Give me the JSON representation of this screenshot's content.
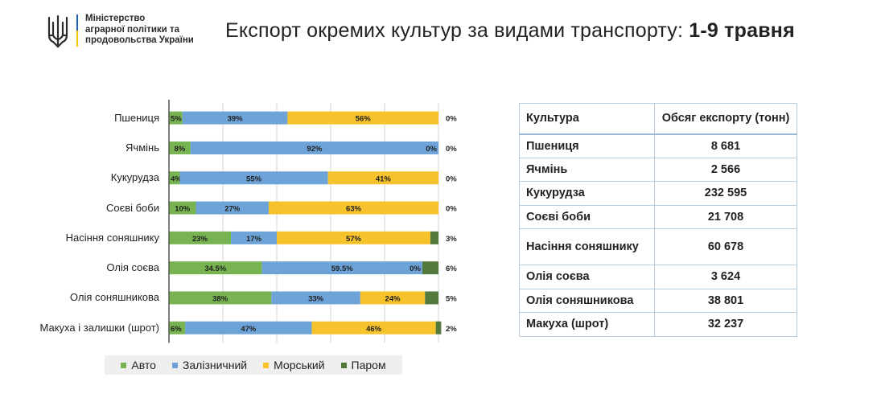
{
  "header": {
    "ministry_lines": [
      "Міністерство",
      "аграрної політики та",
      "продовольства України"
    ],
    "title_regular": "Експорт окремих культур за видами транспорту: ",
    "title_bold": "1-9 травня"
  },
  "colors": {
    "auto": "#77b451",
    "rail": "#6ea3d8",
    "sea": "#f6c32c",
    "ferry": "#537a3d",
    "axis": "#555555",
    "grid": "#d4d4d4"
  },
  "legend": [
    {
      "key": "auto",
      "label": "Авто"
    },
    {
      "key": "rail",
      "label": "Залізничний"
    },
    {
      "key": "sea",
      "label": "Морський"
    },
    {
      "key": "ferry",
      "label": "Паром"
    }
  ],
  "chart_data": {
    "type": "bar",
    "orientation": "horizontal",
    "stacked": true,
    "categories": [
      "Пшениця",
      "Ячмінь",
      "Кукурудза",
      "Соєві боби",
      "Насіння соняшнику",
      "Олія соєва",
      "Олія соняшникова",
      "Макуха і залишки (шрот)"
    ],
    "series": [
      {
        "name": "Авто",
        "key": "auto",
        "values": [
          5,
          8,
          4,
          10,
          23,
          34.5,
          38,
          6
        ],
        "labels": [
          "5%",
          "8%",
          "4%",
          "10%",
          "23%",
          "34.5%",
          "38%",
          "6%"
        ]
      },
      {
        "name": "Залізничний",
        "key": "rail",
        "values": [
          39,
          92,
          55,
          27,
          17,
          59.5,
          33,
          47
        ],
        "labels": [
          "39%",
          "92%",
          "55%",
          "27%",
          "17%",
          "59.5%",
          "33%",
          "47%"
        ]
      },
      {
        "name": "Морський",
        "key": "sea",
        "values": [
          56,
          0,
          41,
          63,
          57,
          0,
          24,
          46
        ],
        "labels": [
          "56%",
          "0%",
          "41%",
          "63%",
          "57%",
          "0%",
          "24%",
          "46%"
        ]
      },
      {
        "name": "Паром",
        "key": "ferry",
        "values": [
          0,
          0,
          0,
          0,
          3,
          6,
          5,
          2
        ],
        "labels": [
          "0%",
          "0%",
          "0%",
          "0%",
          "3%",
          "6%",
          "5%",
          "2%"
        ]
      }
    ],
    "xlim": [
      0,
      100
    ],
    "xlabel": "",
    "ylabel": "",
    "legend_position": "bottom",
    "grid": true
  },
  "table": {
    "headers": [
      "Культура",
      "Обсяг експорту (тонн)"
    ],
    "rows": [
      {
        "crop": "Пшениця",
        "volume": "8 681"
      },
      {
        "crop": "Ячмінь",
        "volume": "2 566"
      },
      {
        "crop": "Кукурудза",
        "volume": "232 595"
      },
      {
        "crop": "Соєві боби",
        "volume": "21 708"
      },
      {
        "crop": "Насіння соняшнику",
        "volume": "60 678"
      },
      {
        "crop": "Олія соєва",
        "volume": "3 624"
      },
      {
        "crop": "Олія соняшникова",
        "volume": "38 801"
      },
      {
        "crop": "Макуха (шрот)",
        "volume": "32 237"
      }
    ]
  }
}
